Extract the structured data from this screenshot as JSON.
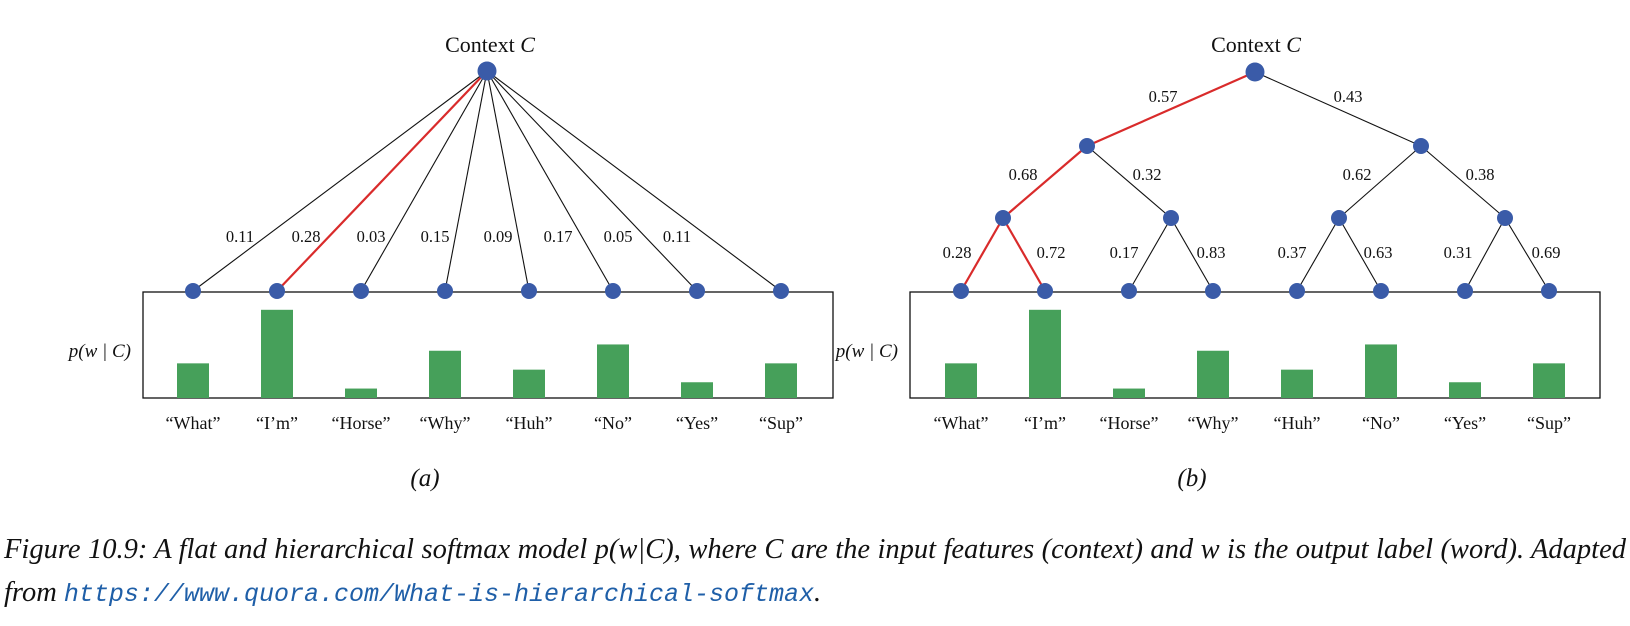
{
  "panels": [
    {
      "id": "a",
      "label": "(a)",
      "root_label": "Context",
      "root_var": "C",
      "ylabel": "p(w | C)",
      "words": [
        "“What”",
        "“I’m”",
        "“Horse”",
        "“Why”",
        "“Huh”",
        "“No”",
        "“Yes”",
        "“Sup”"
      ],
      "probabilities": [
        "0.11",
        "0.28",
        "0.03",
        "0.15",
        "0.09",
        "0.17",
        "0.05",
        "0.11"
      ],
      "bar_values": [
        0.11,
        0.28,
        0.03,
        0.15,
        0.09,
        0.17,
        0.05,
        0.11
      ],
      "highlight_leaf": 1
    },
    {
      "id": "b",
      "label": "(b)",
      "root_label": "Context",
      "root_var": "C",
      "ylabel": "p(w | C)",
      "words": [
        "“What”",
        "“I’m”",
        "“Horse”",
        "“Why”",
        "“Huh”",
        "“No”",
        "“Yes”",
        "“Sup”"
      ],
      "level1_probs": [
        "0.57",
        "0.43"
      ],
      "level2_probs": [
        "0.68",
        "0.32",
        "0.62",
        "0.38"
      ],
      "level3_probs": [
        "0.28",
        "0.72",
        "0.17",
        "0.83",
        "0.37",
        "0.63",
        "0.31",
        "0.69"
      ],
      "bar_values": [
        0.11,
        0.28,
        0.03,
        0.15,
        0.09,
        0.17,
        0.05,
        0.11
      ],
      "highlight_path": [
        "root-left",
        "left-leftleft",
        "leftleft-leaf2"
      ]
    }
  ],
  "colors": {
    "node": "#3a5ba8",
    "bar": "#46a05a",
    "highlight": "#d92b2b",
    "edge": "#111111"
  },
  "caption": {
    "text": "Figure 10.9: A flat and hierarchical softmax model p(w|C), where C are the input features (context) and w is the output label (word). Adapted from",
    "url": "https://www.quora.com/What-is-hierarchical-softmax",
    "end": "."
  }
}
